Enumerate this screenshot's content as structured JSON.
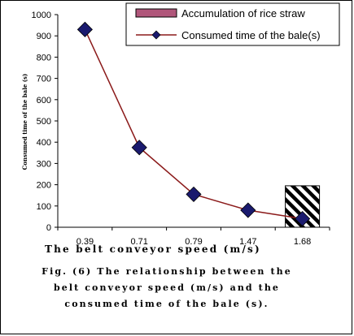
{
  "chart_data": {
    "type": "line",
    "title": "",
    "xlabel": "The belt conveyor speed (m/s)",
    "ylabel": "Consumed time of the bale (s)",
    "categories": [
      "0.39",
      "0.71",
      "0.79",
      "1.47",
      "1.68"
    ],
    "ylim": [
      0,
      1000
    ],
    "yticks": [
      0,
      100,
      200,
      300,
      400,
      500,
      600,
      700,
      800,
      900,
      1000
    ],
    "grid": false,
    "legend_position": "top-right",
    "series": [
      {
        "name": "Consumed time of the bale(s)",
        "type": "line",
        "values": [
          930,
          375,
          155,
          80,
          40
        ],
        "color": "#8b1a1a",
        "marker_color": "#1a1a6e"
      },
      {
        "name": "Accumulation of rice straw",
        "type": "bar",
        "values": [
          null,
          null,
          null,
          null,
          195
        ],
        "color": "#b0567a",
        "pattern": "diagonal-hatch"
      }
    ]
  },
  "caption": {
    "line1": "Fig. (6) The relationship between the",
    "line2": "belt conveyor speed (m/s) and the",
    "line3": "consumed time of the bale (s)."
  },
  "legend_bar_color": "#b0567a"
}
